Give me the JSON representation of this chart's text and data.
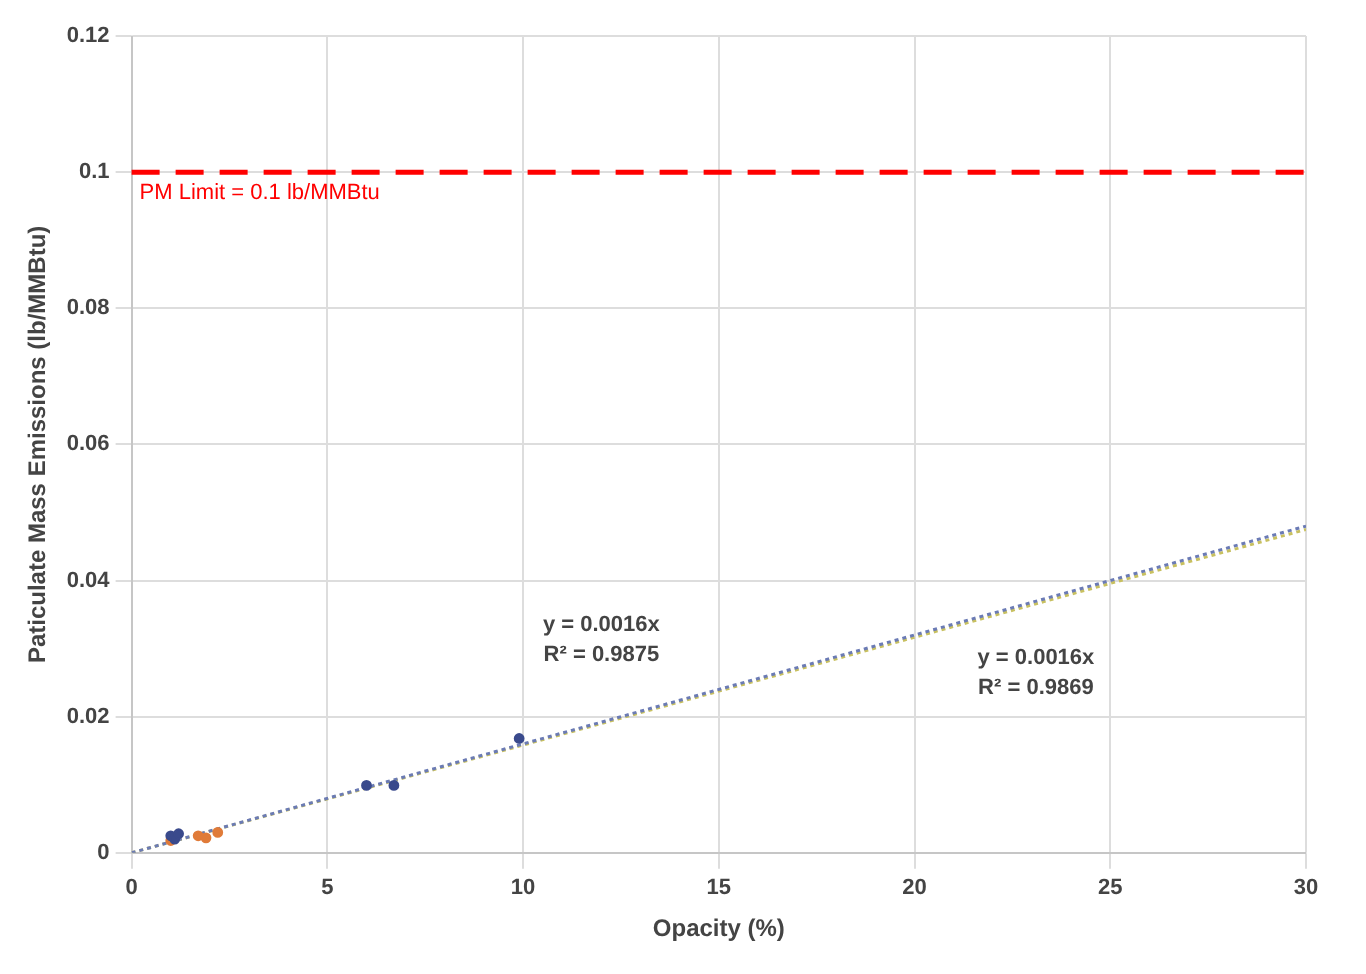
{
  "chart_data": {
    "type": "scatter",
    "xlabel": "Opacity (%)",
    "ylabel": "Paticulate Mass Emissions (lb/MMBtu)",
    "xlim": [
      0,
      30
    ],
    "xticks": [
      0,
      5,
      10,
      15,
      20,
      25,
      30
    ],
    "ylim": [
      0,
      0.12
    ],
    "yticks": [
      0,
      0.02,
      0.04,
      0.06,
      0.08,
      0.1,
      0.12
    ],
    "grid": true,
    "legend": false,
    "marker": "circle",
    "series": [
      {
        "type": "scatter",
        "color": "#3a4a8c",
        "x": [
          1.0,
          1.1,
          1.2,
          6.0,
          6.7,
          9.9
        ],
        "values": [
          0.0025,
          0.002,
          0.0028,
          0.0099,
          0.0099,
          0.0168
        ]
      },
      {
        "type": "scatter",
        "color": "#e07b39",
        "x": [
          1.0,
          1.7,
          1.9,
          2.2
        ],
        "values": [
          0.0018,
          0.0025,
          0.0022,
          0.003
        ]
      },
      {
        "type": "line",
        "color": "#6b7bb5",
        "marker": "none",
        "line_style": "dotted",
        "x": [
          0,
          30
        ],
        "values": [
          0,
          0.048
        ]
      },
      {
        "type": "line",
        "color": "#c8c060",
        "marker": "none",
        "line_style": "dotted",
        "x": [
          0,
          30
        ],
        "values": [
          0,
          0.0475
        ]
      }
    ],
    "ref_lines": [
      {
        "axis": "y",
        "value": 0.1,
        "label": "PM Limit = 0.1 lb/MMBtu",
        "color": "#ff0000",
        "line_style": "dashed"
      }
    ],
    "annotations": [
      "y = 0.0016x\nR² = 0.9875",
      "y = 0.0016x\nR² = 0.9869"
    ]
  }
}
